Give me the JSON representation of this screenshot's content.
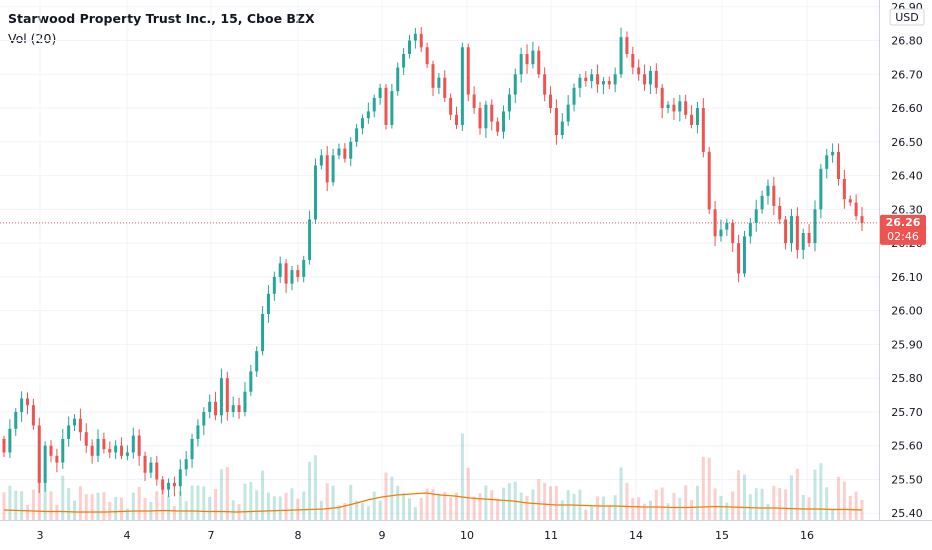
{
  "header": {
    "title": "Starwood Property Trust Inc., 15, Cboe BZX",
    "volume_label": "Vol (20)"
  },
  "price_axis": {
    "currency": "USD",
    "labels": [
      "26.90",
      "26.80",
      "26.70",
      "26.60",
      "26.50",
      "26.40",
      "26.30",
      "26.20",
      "26.10",
      "26.00",
      "25.90",
      "25.80",
      "25.70",
      "25.60",
      "25.50",
      "25.40"
    ]
  },
  "last_price": {
    "value": "26.26",
    "countdown": "02:46"
  },
  "colors": {
    "up": "#26a69a",
    "down": "#ef5350",
    "volume_ma": "#f57c00",
    "last_price_line": "#ef5350",
    "grid": "#f0f3fa",
    "axis_text": "#131722"
  },
  "chart_data": {
    "type": "candlestick",
    "title": "Starwood Property Trust Inc., 15, Cboe BZX",
    "x_tick_labels": [
      "3",
      "4",
      "7",
      "8",
      "9",
      "10",
      "11",
      "14",
      "15",
      "16"
    ],
    "ylim": [
      25.38,
      26.92
    ],
    "last_price": 26.26,
    "series": [
      {
        "name": "Price",
        "points": [
          {
            "o": 25.62,
            "c": 25.58
          },
          {
            "o": 25.58,
            "c": 25.65
          },
          {
            "o": 25.65,
            "c": 25.7
          },
          {
            "o": 25.7,
            "c": 25.74
          },
          {
            "o": 25.74,
            "c": 25.72
          },
          {
            "o": 25.72,
            "c": 25.66
          },
          {
            "o": 25.66,
            "c": 25.49
          },
          {
            "o": 25.49,
            "c": 25.6
          },
          {
            "o": 25.6,
            "c": 25.57
          },
          {
            "o": 25.57,
            "c": 25.55
          },
          {
            "o": 25.55,
            "c": 25.62
          },
          {
            "o": 25.62,
            "c": 25.66
          },
          {
            "o": 25.66,
            "c": 25.68
          },
          {
            "o": 25.68,
            "c": 25.64
          },
          {
            "o": 25.64,
            "c": 25.6
          },
          {
            "o": 25.6,
            "c": 25.57
          },
          {
            "o": 25.57,
            "c": 25.62
          },
          {
            "o": 25.62,
            "c": 25.59
          },
          {
            "o": 25.59,
            "c": 25.58
          },
          {
            "o": 25.58,
            "c": 25.6
          },
          {
            "o": 25.6,
            "c": 25.57
          },
          {
            "o": 25.57,
            "c": 25.58
          },
          {
            "o": 25.58,
            "c": 25.63
          },
          {
            "o": 25.63,
            "c": 25.57
          },
          {
            "o": 25.57,
            "c": 25.52
          },
          {
            "o": 25.52,
            "c": 25.55
          },
          {
            "o": 25.55,
            "c": 25.5
          },
          {
            "o": 25.5,
            "c": 25.47
          },
          {
            "o": 25.47,
            "c": 25.49
          },
          {
            "o": 25.49,
            "c": 25.48
          },
          {
            "o": 25.48,
            "c": 25.53
          },
          {
            "o": 25.53,
            "c": 25.56
          },
          {
            "o": 25.56,
            "c": 25.62
          },
          {
            "o": 25.62,
            "c": 25.66
          },
          {
            "o": 25.66,
            "c": 25.7
          },
          {
            "o": 25.7,
            "c": 25.73
          },
          {
            "o": 25.73,
            "c": 25.69
          },
          {
            "o": 25.69,
            "c": 25.8
          },
          {
            "o": 25.8,
            "c": 25.7
          },
          {
            "o": 25.7,
            "c": 25.72
          },
          {
            "o": 25.72,
            "c": 25.7
          },
          {
            "o": 25.7,
            "c": 25.76
          },
          {
            "o": 25.76,
            "c": 25.82
          },
          {
            "o": 25.82,
            "c": 25.88
          },
          {
            "o": 25.88,
            "c": 25.99
          },
          {
            "o": 25.99,
            "c": 26.05
          },
          {
            "o": 26.05,
            "c": 26.1
          },
          {
            "o": 26.1,
            "c": 26.14
          },
          {
            "o": 26.14,
            "c": 26.08
          },
          {
            "o": 26.08,
            "c": 26.12
          },
          {
            "o": 26.12,
            "c": 26.1
          },
          {
            "o": 26.1,
            "c": 26.15
          },
          {
            "o": 26.15,
            "c": 26.27
          },
          {
            "o": 26.27,
            "c": 26.43
          },
          {
            "o": 26.43,
            "c": 26.46
          },
          {
            "o": 26.46,
            "c": 26.38
          },
          {
            "o": 26.38,
            "c": 26.46
          },
          {
            "o": 26.46,
            "c": 26.48
          },
          {
            "o": 26.48,
            "c": 26.45
          },
          {
            "o": 26.45,
            "c": 26.5
          },
          {
            "o": 26.5,
            "c": 26.54
          },
          {
            "o": 26.54,
            "c": 26.57
          },
          {
            "o": 26.57,
            "c": 26.59
          },
          {
            "o": 26.59,
            "c": 26.63
          },
          {
            "o": 26.63,
            "c": 26.66
          },
          {
            "o": 26.66,
            "c": 26.55
          },
          {
            "o": 26.55,
            "c": 26.65
          },
          {
            "o": 26.65,
            "c": 26.72
          },
          {
            "o": 26.72,
            "c": 26.76
          },
          {
            "o": 26.76,
            "c": 26.8
          },
          {
            "o": 26.8,
            "c": 26.82
          },
          {
            "o": 26.82,
            "c": 26.78
          },
          {
            "o": 26.78,
            "c": 26.73
          },
          {
            "o": 26.73,
            "c": 26.66
          },
          {
            "o": 26.66,
            "c": 26.69
          },
          {
            "o": 26.69,
            "c": 26.63
          },
          {
            "o": 26.63,
            "c": 26.58
          },
          {
            "o": 26.58,
            "c": 26.55
          },
          {
            "o": 26.55,
            "c": 26.78
          },
          {
            "o": 26.78,
            "c": 26.64
          },
          {
            "o": 26.64,
            "c": 26.6
          },
          {
            "o": 26.6,
            "c": 26.54
          },
          {
            "o": 26.54,
            "c": 26.61
          },
          {
            "o": 26.61,
            "c": 26.56
          },
          {
            "o": 26.56,
            "c": 26.53
          },
          {
            "o": 26.53,
            "c": 26.59
          },
          {
            "o": 26.59,
            "c": 26.64
          },
          {
            "o": 26.64,
            "c": 26.7
          },
          {
            "o": 26.7,
            "c": 26.76
          },
          {
            "o": 26.76,
            "c": 26.73
          },
          {
            "o": 26.73,
            "c": 26.77
          },
          {
            "o": 26.77,
            "c": 26.7
          },
          {
            "o": 26.7,
            "c": 26.64
          },
          {
            "o": 26.64,
            "c": 26.6
          },
          {
            "o": 26.6,
            "c": 26.52
          },
          {
            "o": 26.52,
            "c": 26.56
          },
          {
            "o": 26.56,
            "c": 26.61
          },
          {
            "o": 26.61,
            "c": 26.66
          },
          {
            "o": 26.66,
            "c": 26.69
          },
          {
            "o": 26.69,
            "c": 26.68
          },
          {
            "o": 26.68,
            "c": 26.7
          },
          {
            "o": 26.7,
            "c": 26.67
          },
          {
            "o": 26.67,
            "c": 26.68
          },
          {
            "o": 26.68,
            "c": 26.67
          },
          {
            "o": 26.67,
            "c": 26.7
          },
          {
            "o": 26.7,
            "c": 26.81
          },
          {
            "o": 26.81,
            "c": 26.76
          },
          {
            "o": 26.76,
            "c": 26.72
          },
          {
            "o": 26.72,
            "c": 26.7
          },
          {
            "o": 26.7,
            "c": 26.67
          },
          {
            "o": 26.67,
            "c": 26.71
          },
          {
            "o": 26.71,
            "c": 26.66
          },
          {
            "o": 26.66,
            "c": 26.6
          },
          {
            "o": 26.6,
            "c": 26.61
          },
          {
            "o": 26.61,
            "c": 26.59
          },
          {
            "o": 26.59,
            "c": 26.62
          },
          {
            "o": 26.62,
            "c": 26.58
          },
          {
            "o": 26.58,
            "c": 26.55
          },
          {
            "o": 26.55,
            "c": 26.6
          },
          {
            "o": 26.6,
            "c": 26.47
          },
          {
            "o": 26.47,
            "c": 26.3
          },
          {
            "o": 26.3,
            "c": 26.22
          },
          {
            "o": 26.22,
            "c": 26.24
          },
          {
            "o": 26.24,
            "c": 26.26
          },
          {
            "o": 26.26,
            "c": 26.2
          },
          {
            "o": 26.2,
            "c": 26.11
          },
          {
            "o": 26.11,
            "c": 26.22
          },
          {
            "o": 26.22,
            "c": 26.26
          },
          {
            "o": 26.26,
            "c": 26.3
          },
          {
            "o": 26.3,
            "c": 26.34
          },
          {
            "o": 26.34,
            "c": 26.37
          },
          {
            "o": 26.37,
            "c": 26.31
          },
          {
            "o": 26.31,
            "c": 26.27
          },
          {
            "o": 26.27,
            "c": 26.2
          },
          {
            "o": 26.2,
            "c": 26.28
          },
          {
            "o": 26.28,
            "c": 26.18
          },
          {
            "o": 26.18,
            "c": 26.23
          },
          {
            "o": 26.23,
            "c": 26.2
          },
          {
            "o": 26.2,
            "c": 26.3
          },
          {
            "o": 26.3,
            "c": 26.42
          },
          {
            "o": 26.42,
            "c": 26.46
          },
          {
            "o": 26.46,
            "c": 26.47
          },
          {
            "o": 26.47,
            "c": 26.39
          },
          {
            "o": 26.39,
            "c": 26.33
          },
          {
            "o": 26.33,
            "c": 26.32
          },
          {
            "o": 26.32,
            "c": 26.28
          },
          {
            "o": 26.28,
            "c": 26.26
          }
        ]
      },
      {
        "name": "Vol (20)",
        "volume_ma_relative": [
          0.2,
          0.19,
          0.18,
          0.17,
          0.17,
          0.16,
          0.16,
          0.16,
          0.17,
          0.18,
          0.18,
          0.19,
          0.18,
          0.18,
          0.17,
          0.17,
          0.16,
          0.17,
          0.18,
          0.19,
          0.2,
          0.21,
          0.22,
          0.25,
          0.32,
          0.4,
          0.46,
          0.5,
          0.52,
          0.54,
          0.5,
          0.48,
          0.44,
          0.42,
          0.4,
          0.38,
          0.34,
          0.32,
          0.3,
          0.3,
          0.29,
          0.28,
          0.28,
          0.27,
          0.26,
          0.26,
          0.25,
          0.25,
          0.26,
          0.27,
          0.26,
          0.25,
          0.24,
          0.24,
          0.23,
          0.22,
          0.22,
          0.21,
          0.21,
          0.2
        ]
      }
    ]
  }
}
